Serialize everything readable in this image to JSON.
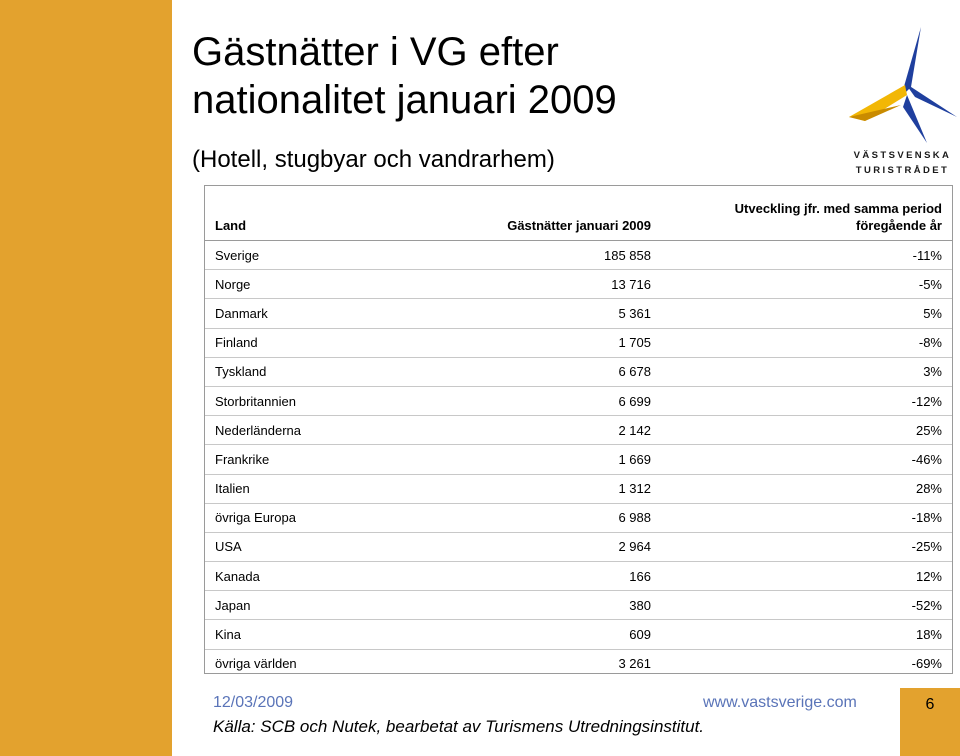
{
  "title": {
    "line1": "Gästnätter i VG efter",
    "line2": "nationalitet januari 2009"
  },
  "subtitle": "(Hotell, stugbyar och vandrarhem)",
  "logo": {
    "line1": "VÄSTSVENSKA",
    "line2": "TURISTRÅDET"
  },
  "table": {
    "headers": {
      "land": "Land",
      "nights": "Gästnätter januari 2009",
      "change_line1": "Utveckling jfr. med samma period",
      "change_line2": "föregående år"
    },
    "rows": [
      {
        "land": "Sverige",
        "nights": "185 858",
        "change": "-11%"
      },
      {
        "land": "Norge",
        "nights": "13 716",
        "change": "-5%"
      },
      {
        "land": "Danmark",
        "nights": "5 361",
        "change": "5%"
      },
      {
        "land": "Finland",
        "nights": "1 705",
        "change": "-8%"
      },
      {
        "land": "Tyskland",
        "nights": "6 678",
        "change": "3%"
      },
      {
        "land": "Storbritannien",
        "nights": "6 699",
        "change": "-12%"
      },
      {
        "land": "Nederländerna",
        "nights": "2 142",
        "change": "25%"
      },
      {
        "land": "Frankrike",
        "nights": "1 669",
        "change": "-46%"
      },
      {
        "land": "Italien",
        "nights": "1 312",
        "change": "28%"
      },
      {
        "land": "övriga Europa",
        "nights": "6 988",
        "change": "-18%"
      },
      {
        "land": "USA",
        "nights": "2 964",
        "change": "-25%"
      },
      {
        "land": "Kanada",
        "nights": "166",
        "change": "12%"
      },
      {
        "land": "Japan",
        "nights": "380",
        "change": "-52%"
      },
      {
        "land": "Kina",
        "nights": "609",
        "change": "18%"
      },
      {
        "land": "övriga världen",
        "nights": "3 261",
        "change": "-69%"
      }
    ]
  },
  "footer": {
    "date": "12/03/2009",
    "url": "www.vastsverige.com",
    "page": "6",
    "source": "Källa: SCB och Nutek, bearbetat av Turismens Utredningsinstitut."
  },
  "colors": {
    "accent": "#E3A22E",
    "logo_blue": "#1f3f9e",
    "logo_yellow": "#f2b705",
    "footer_text": "#5a74b8"
  }
}
